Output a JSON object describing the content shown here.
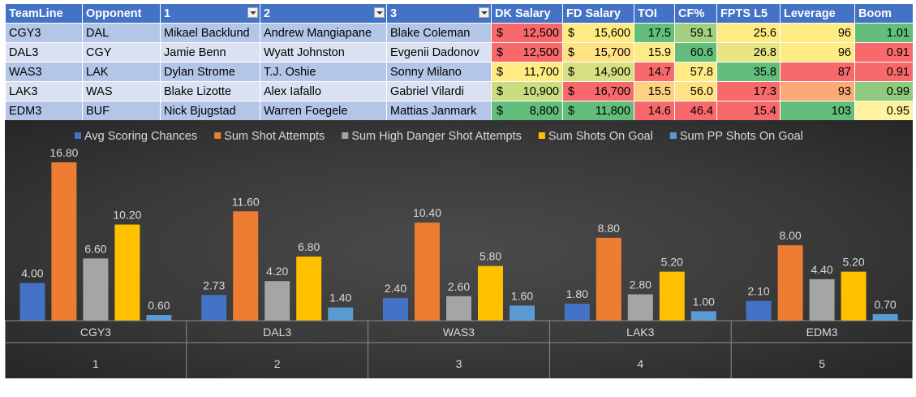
{
  "table": {
    "headers": [
      {
        "label": "TeamLine",
        "filter": false
      },
      {
        "label": "Opponent",
        "filter": false
      },
      {
        "label": "1",
        "filter": true
      },
      {
        "label": "2",
        "filter": true
      },
      {
        "label": "3",
        "filter": true
      },
      {
        "label": "DK Salary",
        "filter": false
      },
      {
        "label": "FD Salary",
        "filter": false
      },
      {
        "label": "TOI",
        "filter": false
      },
      {
        "label": "CF%",
        "filter": false
      },
      {
        "label": "FPTS L5",
        "filter": false
      },
      {
        "label": "Leverage",
        "filter": false
      },
      {
        "label": "Boom",
        "filter": false
      }
    ],
    "currency_symbol": "$",
    "rows": [
      {
        "teamline": "CGY3",
        "opponent": "DAL",
        "p1": "Mikael Backlund",
        "p2": "Andrew Mangiapane",
        "p3": "Blake Coleman",
        "dk": "12,500",
        "fd": "15,600",
        "toi": "17.5",
        "cf": "59.1",
        "fpts": "25.6",
        "leverage": "96",
        "boom": "1.01",
        "colors": {
          "dk": "#f8696b",
          "fd": "#ffeb84",
          "toi": "#63be7b",
          "cf": "#a2d07f",
          "fpts": "#ffeb84",
          "leverage": "#ffeb84",
          "boom": "#63be7b"
        }
      },
      {
        "teamline": "DAL3",
        "opponent": "CGY",
        "p1": "Jamie Benn",
        "p2": "Wyatt Johnston",
        "p3": "Evgenii Dadonov",
        "dk": "12,500",
        "fd": "15,700",
        "toi": "15.9",
        "cf": "60.6",
        "fpts": "26.8",
        "leverage": "96",
        "boom": "0.91",
        "colors": {
          "dk": "#f8696b",
          "fd": "#ffe283",
          "toi": "#ffeb84",
          "cf": "#63be7b",
          "fpts": "#e9e583",
          "leverage": "#ffeb84",
          "boom": "#f8696b"
        }
      },
      {
        "teamline": "WAS3",
        "opponent": "LAK",
        "p1": "Dylan Strome",
        "p2": "T.J. Oshie",
        "p3": "Sonny Milano",
        "dk": "11,700",
        "fd": "14,900",
        "toi": "14.7",
        "cf": "57.8",
        "fpts": "35.8",
        "leverage": "87",
        "boom": "0.91",
        "colors": {
          "dk": "#ffeb84",
          "fd": "#d4e081",
          "toi": "#f8696b",
          "cf": "#ffeb84",
          "fpts": "#63be7b",
          "leverage": "#f8696b",
          "boom": "#f8696b"
        }
      },
      {
        "teamline": "LAK3",
        "opponent": "WAS",
        "p1": "Blake Lizotte",
        "p2": "Alex Iafallo",
        "p3": "Gabriel Vilardi",
        "dk": "10,900",
        "fd": "16,700",
        "toi": "15.5",
        "cf": "56.0",
        "fpts": "17.3",
        "leverage": "93",
        "boom": "0.99",
        "colors": {
          "dk": "#cbdc81",
          "fd": "#f8696b",
          "toi": "#fdd17f",
          "cf": "#ffe283",
          "fpts": "#f8696b",
          "leverage": "#fbaa77",
          "boom": "#8fca7e"
        }
      },
      {
        "teamline": "EDM3",
        "opponent": "BUF",
        "p1": "Nick Bjugstad",
        "p2": "Warren Foegele",
        "p3": "Mattias Janmark",
        "dk": "8,800",
        "fd": "11,800",
        "toi": "14.6",
        "cf": "46.4",
        "fpts": "15.4",
        "leverage": "103",
        "boom": "0.95",
        "colors": {
          "dk": "#63be7b",
          "fd": "#63be7b",
          "toi": "#f8696b",
          "cf": "#f8696b",
          "fpts": "#f8696b",
          "leverage": "#63be7b",
          "boom": "#fff2a0"
        }
      }
    ]
  },
  "chart_data": {
    "type": "bar",
    "title": "",
    "xlabel": "",
    "ylabel": "",
    "legend_position": "top",
    "grid": false,
    "ylim": [
      0,
      18
    ],
    "categories": [
      {
        "label": "CGY3",
        "sub": "1"
      },
      {
        "label": "DAL3",
        "sub": "2"
      },
      {
        "label": "WAS3",
        "sub": "3"
      },
      {
        "label": "LAK3",
        "sub": "4"
      },
      {
        "label": "EDM3",
        "sub": "5"
      }
    ],
    "series": [
      {
        "name": "Avg Scoring Chances",
        "color": "#4472c4",
        "labels": [
          "4.00",
          "2.73",
          "2.40",
          "1.80",
          "2.10"
        ],
        "values": [
          4.0,
          2.73,
          2.4,
          1.8,
          2.1
        ]
      },
      {
        "name": "Sum Shot Attempts",
        "color": "#ed7d31",
        "labels": [
          "16.80",
          "11.60",
          "10.40",
          "8.80",
          "8.00"
        ],
        "values": [
          16.8,
          11.6,
          10.4,
          8.8,
          8.0
        ]
      },
      {
        "name": "Sum High Danger Shot Attempts",
        "color": "#a5a5a5",
        "labels": [
          "6.60",
          "4.20",
          "2.60",
          "2.80",
          "4.40"
        ],
        "values": [
          6.6,
          4.2,
          2.6,
          2.8,
          4.4
        ]
      },
      {
        "name": "Sum Shots On Goal",
        "color": "#ffc000",
        "labels": [
          "10.20",
          "6.80",
          "5.80",
          "5.20",
          "5.20"
        ],
        "values": [
          10.2,
          6.8,
          5.8,
          5.2,
          5.2
        ]
      },
      {
        "name": "Sum PP Shots On Goal",
        "color": "#5b9bd5",
        "labels": [
          "0.60",
          "1.40",
          "1.60",
          "1.00",
          "0.70"
        ],
        "values": [
          0.6,
          1.4,
          1.6,
          1.0,
          0.7
        ]
      }
    ]
  }
}
